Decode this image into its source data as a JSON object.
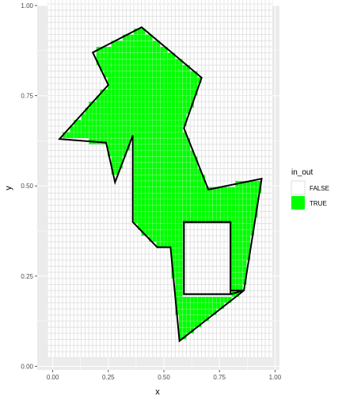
{
  "chart_data": {
    "type": "grid-polygon",
    "xlabel": "x",
    "ylabel": "y",
    "xlim": [
      -0.07,
      1.02
    ],
    "ylim": [
      -0.01,
      1.0
    ],
    "x_ticks": [
      0.0,
      0.25,
      0.5,
      0.75,
      1.0
    ],
    "y_ticks": [
      0.0,
      0.25,
      0.5,
      0.75,
      1.0
    ],
    "x_tick_labels": [
      "0.00",
      "0.25",
      "0.50",
      "0.75",
      "1.00"
    ],
    "y_tick_labels": [
      "0.00",
      "0.25",
      "0.50",
      "0.75",
      "1.00"
    ],
    "grid_cells": {
      "x_min": -0.0238,
      "y_min": 0.0238,
      "n": 60,
      "step": 0.0169
    },
    "outer_polygon": [
      [
        0.4,
        0.94
      ],
      [
        0.67,
        0.8
      ],
      [
        0.59,
        0.66
      ],
      [
        0.7,
        0.49
      ],
      [
        0.94,
        0.52
      ],
      [
        0.86,
        0.21
      ],
      [
        0.8,
        0.21
      ],
      [
        0.8,
        0.4
      ],
      [
        0.59,
        0.4
      ],
      [
        0.59,
        0.2
      ],
      [
        0.8,
        0.2
      ],
      [
        0.86,
        0.21
      ],
      [
        0.57,
        0.07
      ],
      [
        0.53,
        0.33
      ],
      [
        0.47,
        0.33
      ],
      [
        0.36,
        0.4
      ],
      [
        0.36,
        0.64
      ],
      [
        0.28,
        0.51
      ],
      [
        0.24,
        0.62
      ],
      [
        0.03,
        0.63
      ],
      [
        0.25,
        0.78
      ],
      [
        0.18,
        0.87
      ]
    ],
    "inner_rect": [
      [
        0.59,
        0.2
      ],
      [
        0.8,
        0.2
      ],
      [
        0.8,
        0.4
      ],
      [
        0.59,
        0.4
      ]
    ],
    "true_region": [
      [
        0.4,
        0.94
      ],
      [
        0.67,
        0.8
      ],
      [
        0.59,
        0.66
      ],
      [
        0.7,
        0.49
      ],
      [
        0.94,
        0.52
      ],
      [
        0.86,
        0.21
      ],
      [
        0.57,
        0.07
      ],
      [
        0.53,
        0.33
      ],
      [
        0.47,
        0.33
      ],
      [
        0.36,
        0.4
      ],
      [
        0.36,
        0.64
      ],
      [
        0.28,
        0.51
      ],
      [
        0.24,
        0.62
      ],
      [
        0.03,
        0.63
      ],
      [
        0.25,
        0.78
      ],
      [
        0.18,
        0.87
      ]
    ],
    "legend": {
      "title": "in_out",
      "position": "right",
      "items": [
        {
          "label": "FALSE",
          "color": "#ffffff"
        },
        {
          "label": "TRUE",
          "color": "#00ff00"
        }
      ]
    },
    "colors": {
      "panel_bg": "#ebebeb",
      "grid_major": "#ffffff",
      "cell_false": "#ffffff",
      "cell_false_border": "#d9d9d9",
      "cell_true": "#00ff00",
      "polygon_stroke": "#000000"
    }
  }
}
